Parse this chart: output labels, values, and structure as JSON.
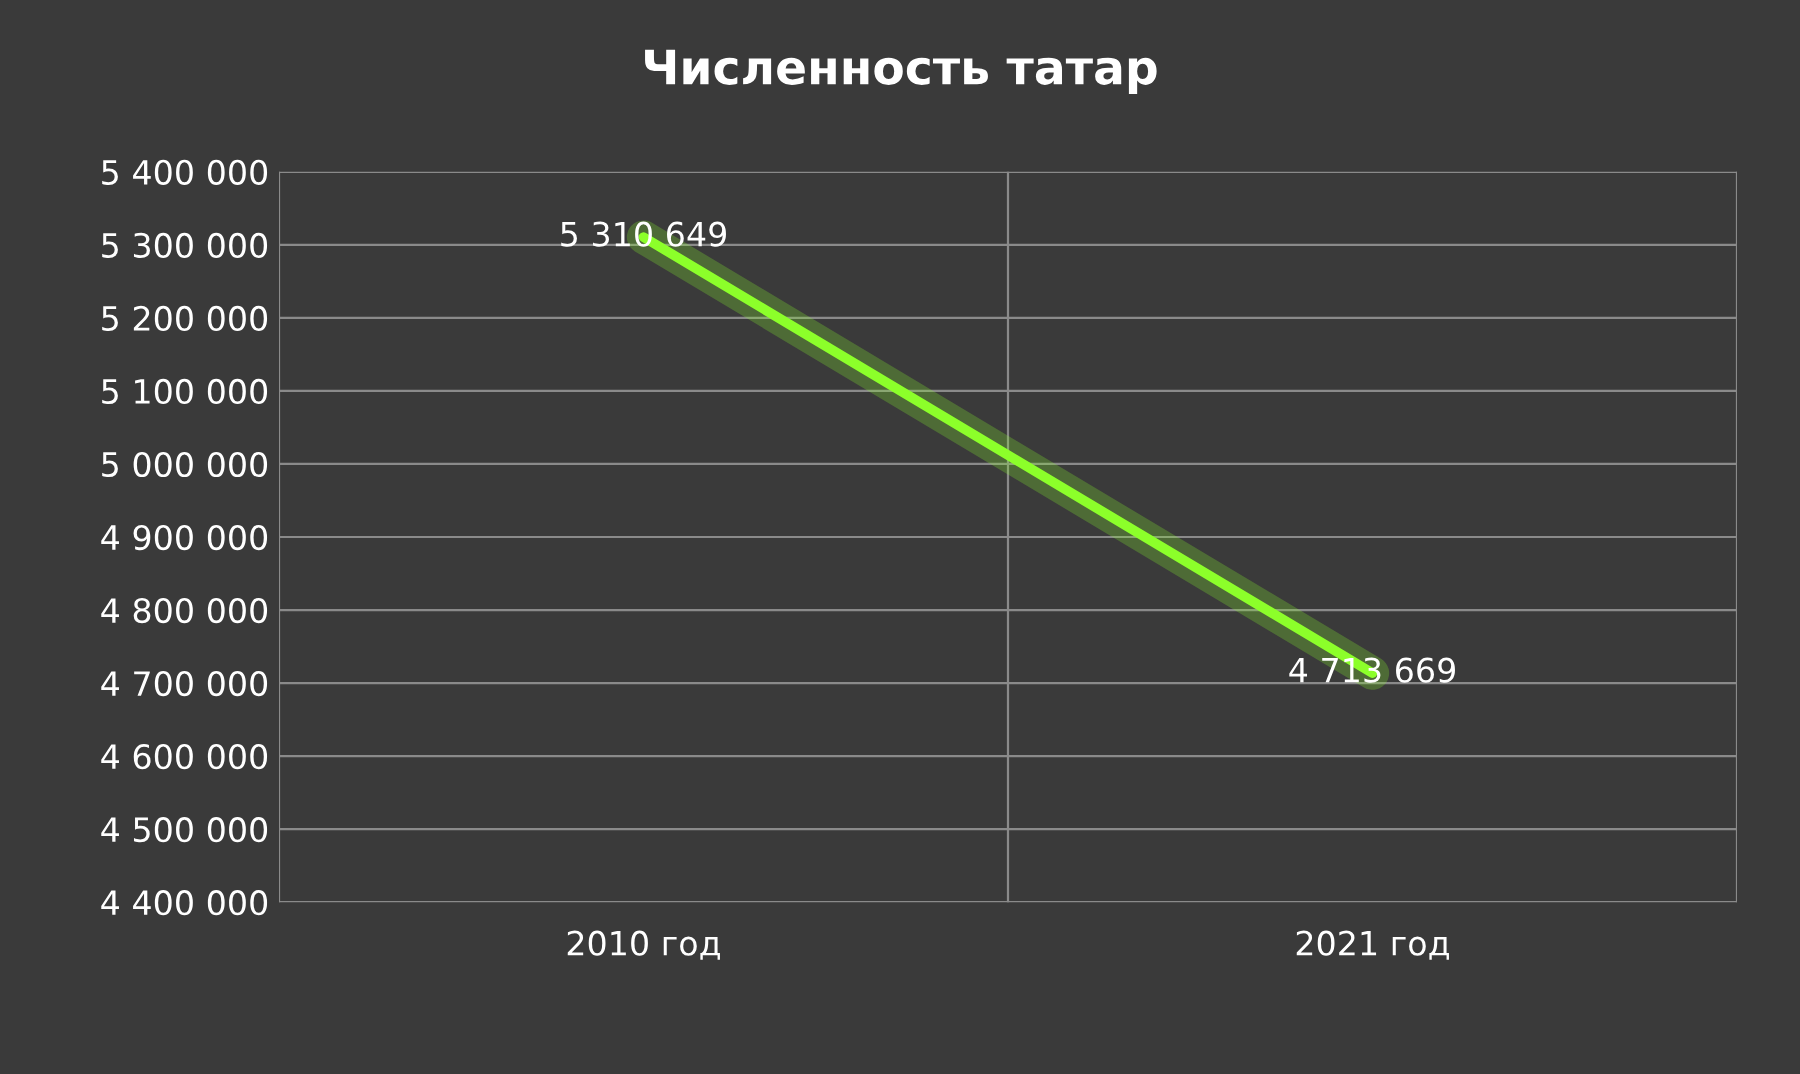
{
  "chart_data": {
    "type": "line",
    "title": "Численность татар",
    "categories": [
      "2010 год",
      "2021 год"
    ],
    "series": [
      {
        "color": "#8cff2a",
        "values": [
          5310649,
          4713669
        ]
      }
    ],
    "ylim": [
      4400000,
      5400000
    ],
    "yticks": [
      {
        "value": 4400000,
        "label": "4 400 000"
      },
      {
        "value": 4500000,
        "label": "4 500 000"
      },
      {
        "value": 4600000,
        "label": "4 600 000"
      },
      {
        "value": 4700000,
        "label": "4 700 000"
      },
      {
        "value": 4800000,
        "label": "4 800 000"
      },
      {
        "value": 4900000,
        "label": "4 900 000"
      },
      {
        "value": 5000000,
        "label": "5 000 000"
      },
      {
        "value": 5100000,
        "label": "5 100 000"
      },
      {
        "value": 5200000,
        "label": "5 200 000"
      },
      {
        "value": 5300000,
        "label": "5 300 000"
      },
      {
        "value": 5400000,
        "label": "5 400 000"
      }
    ],
    "grid": true,
    "data_labels": true,
    "marker": "none",
    "line_style": "solid"
  }
}
